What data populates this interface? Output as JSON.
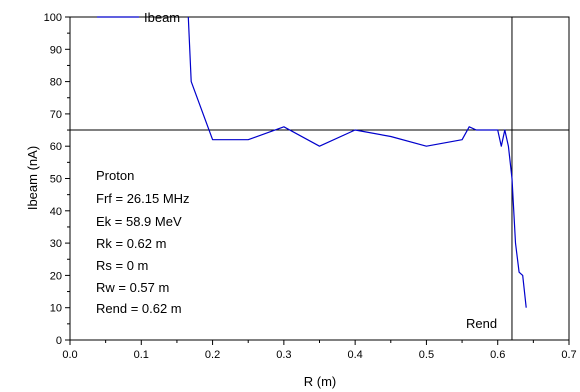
{
  "chart_data": {
    "type": "line",
    "xlabel": "R (m)",
    "ylabel": "Ibeam (nA)",
    "xlim": [
      0.0,
      0.7
    ],
    "ylim": [
      0,
      100
    ],
    "x_ticks": [
      "0.0",
      "0.1",
      "0.2",
      "0.3",
      "0.4",
      "0.5",
      "0.6",
      "0.7"
    ],
    "y_ticks": [
      "0",
      "10",
      "20",
      "30",
      "40",
      "50",
      "60",
      "70",
      "80",
      "90",
      "100"
    ],
    "grid": false,
    "legend_position": "top-left",
    "series": [
      {
        "name": "Ibeam",
        "color": "#0000cc",
        "points": [
          [
            0.166,
            100
          ],
          [
            0.17,
            80
          ],
          [
            0.2,
            62
          ],
          [
            0.25,
            62
          ],
          [
            0.3,
            66
          ],
          [
            0.35,
            60
          ],
          [
            0.4,
            65
          ],
          [
            0.45,
            63
          ],
          [
            0.5,
            60
          ],
          [
            0.55,
            62
          ],
          [
            0.56,
            66
          ],
          [
            0.57,
            65
          ],
          [
            0.6,
            65
          ],
          [
            0.605,
            60
          ],
          [
            0.61,
            65
          ],
          [
            0.615,
            60
          ],
          [
            0.62,
            50
          ],
          [
            0.625,
            30
          ],
          [
            0.63,
            21
          ],
          [
            0.635,
            20
          ],
          [
            0.64,
            10
          ]
        ]
      }
    ],
    "reference_lines": [
      {
        "orientation": "horizontal",
        "value": 65,
        "color": "#000000"
      },
      {
        "orientation": "vertical",
        "value": 0.62,
        "color": "#000000",
        "label": "Rend"
      }
    ],
    "annotations": [
      "Proton",
      "Frf = 26.15 MHz",
      "Ek = 58.9 MeV",
      "Rk = 0.62 m",
      "Rs = 0 m",
      "Rw = 0.57 m",
      "Rend = 0.62 m"
    ]
  }
}
